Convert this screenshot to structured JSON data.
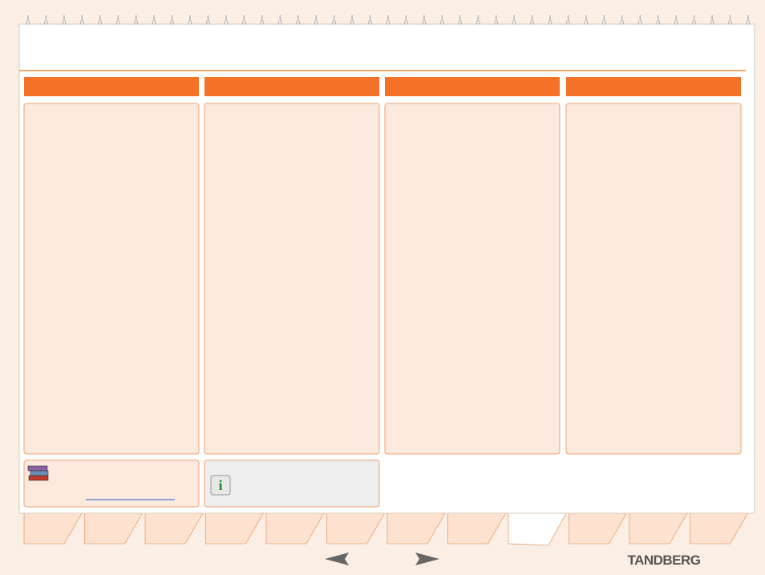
{
  "footer": {
    "brand": "TANDBERG"
  }
}
